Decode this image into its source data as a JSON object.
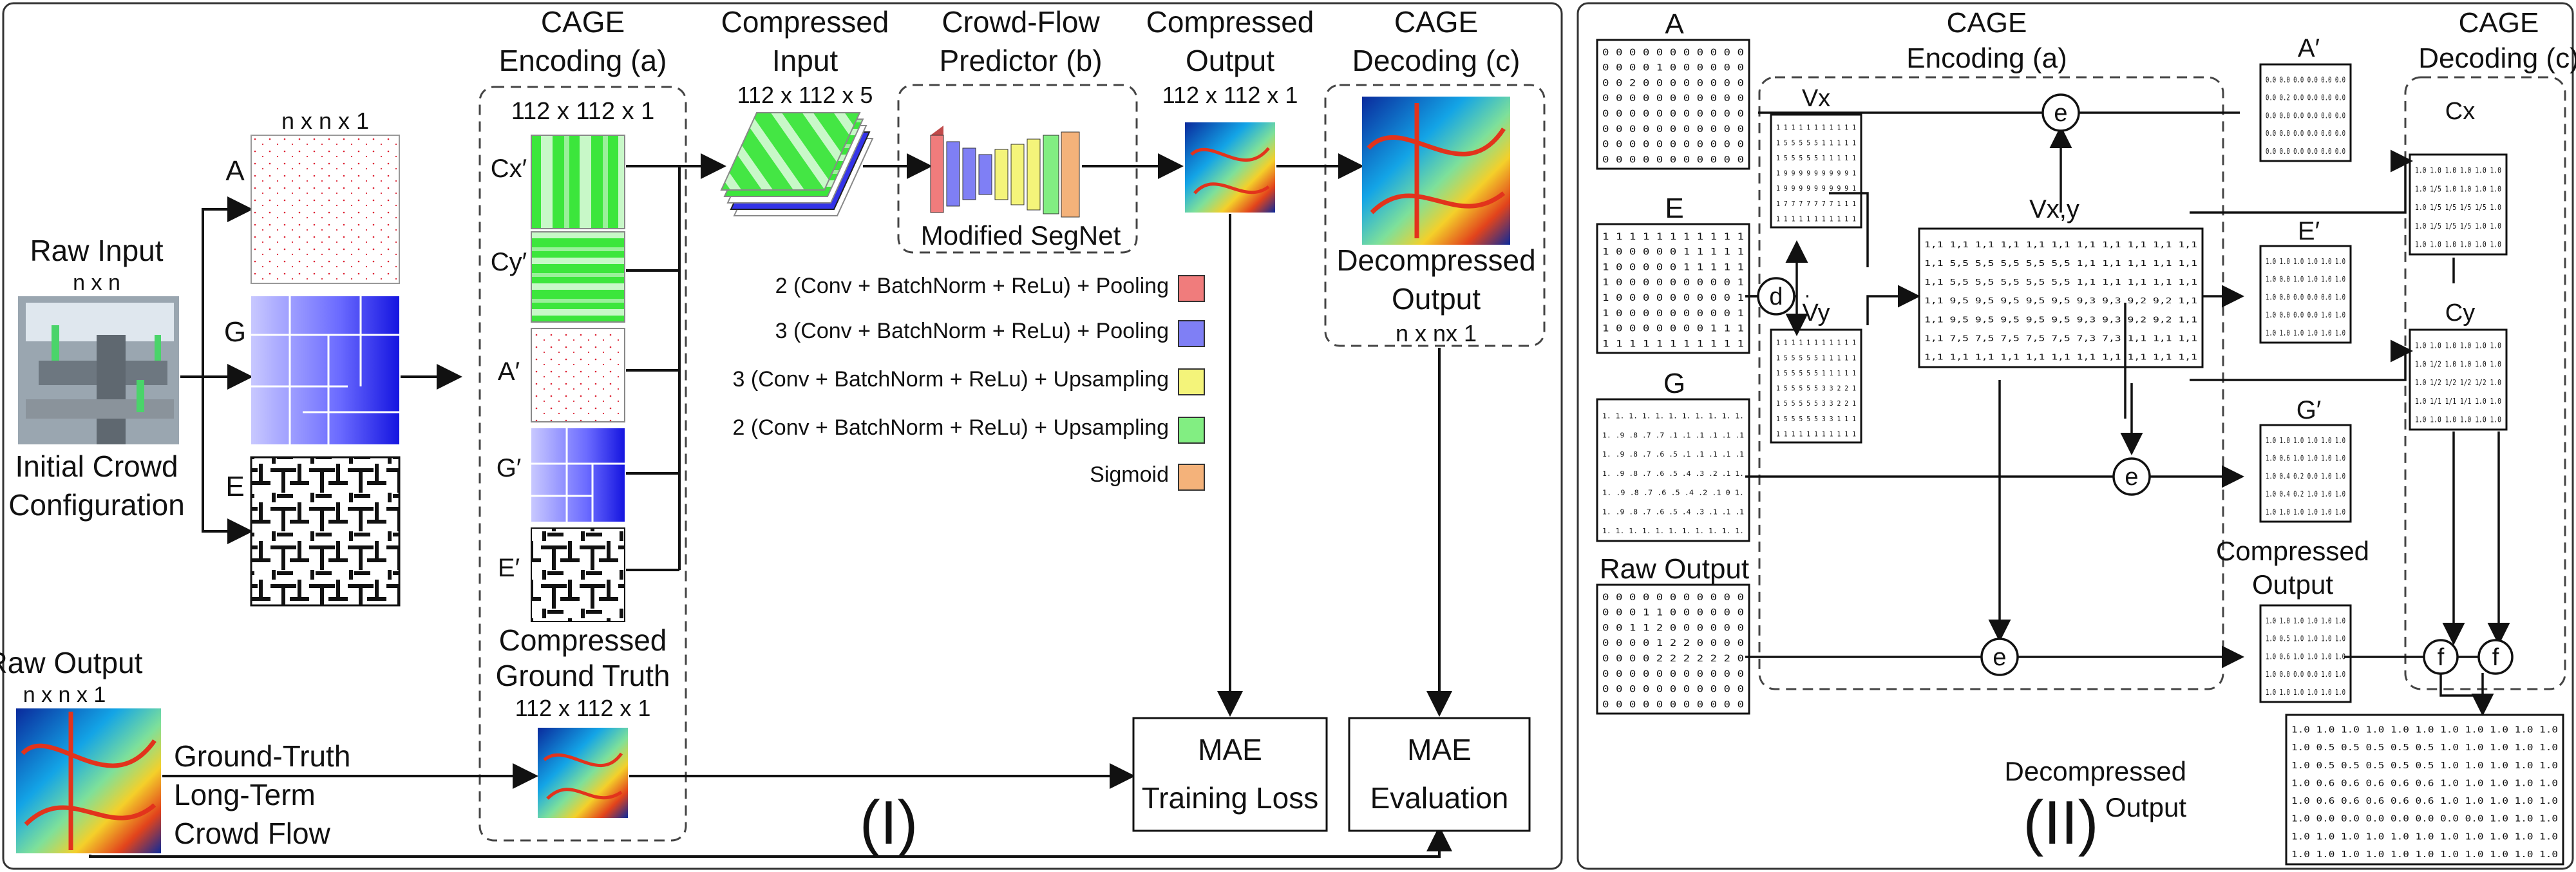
{
  "panel_left": {
    "label": "(I)",
    "raw_input": {
      "title": "Raw Input",
      "dims": "n x n"
    },
    "initial_config": {
      "line1": "Initial Crowd",
      "line2": "Configuration"
    },
    "grids_dims": "n x n x 1",
    "grid_labels": {
      "a": "A",
      "g": "G",
      "e": "E"
    },
    "cage_encoding": {
      "title_line1": "CAGE",
      "title_line2": "Encoding (a)",
      "dims": "112 x 112 x 1",
      "labels": [
        "Cx′",
        "Cy′",
        "A′",
        "G′",
        "E′"
      ]
    },
    "compressed_ground_truth": {
      "line1": "Compressed",
      "line2": "Ground Truth",
      "dims": "112 x 112 x 1"
    },
    "compressed_input": {
      "line1": "Compressed",
      "line2": "Input",
      "dims": "112 x 112 x 5"
    },
    "crowd_flow": {
      "line1": "Crowd-Flow",
      "line2": "Predictor (b)",
      "segnet": "Modified SegNet"
    },
    "compressed_output": {
      "line1": "Compressed",
      "line2": "Output",
      "dims": "112 x 112 x 1"
    },
    "cage_decoding": {
      "line1": "CAGE",
      "line2": "Decoding (c)"
    },
    "decompressed_output": {
      "line1": "Decompressed",
      "line2": "Output",
      "dims": "n x nx 1"
    },
    "legend": [
      {
        "label": "2 (Conv + BatchNorm + ReLu) + Pooling",
        "color": "#f07c7c"
      },
      {
        "label": "3 (Conv + BatchNorm + ReLu) + Pooling",
        "color": "#7f7ff5"
      },
      {
        "label": "3 (Conv + BatchNorm + ReLu) + Upsampling",
        "color": "#f4f47a"
      },
      {
        "label": "2 (Conv + BatchNorm + ReLu) + Upsampling",
        "color": "#82ee82"
      },
      {
        "label": "Sigmoid",
        "color": "#f4b27a"
      }
    ],
    "raw_output": {
      "title": "Raw Output",
      "dims": "n x n x 1"
    },
    "ground_truth_text": [
      "Ground-Truth",
      "Long-Term",
      "Crowd Flow"
    ],
    "mae_training": {
      "line1": "MAE",
      "line2": "Training Loss"
    },
    "mae_evaluation": {
      "line1": "MAE",
      "line2": "Evaluation"
    }
  },
  "panel_right": {
    "label": "(II)",
    "cage_encoding": {
      "line1": "CAGE",
      "line2": "Encoding (a)"
    },
    "cage_decoding": {
      "line1": "CAGE",
      "line2": "Decoding (c)"
    },
    "matrix_a": {
      "label": "A",
      "rows": [
        "0 0 0 0 0 0 0 0 0 0 0",
        "0 0 0 0 1 0 0 0 0 0 0",
        "0 0 2 0 0 0 0 0 0 0 0",
        "0 0 0 0 0 0 0 0 0 0 0",
        "0 0 0 0 0 0 0 0 0 0 0",
        "0 0 0 0 0 0 0 0 0 0 0",
        "0 0 0 0 0 0 0 0 0 0 0",
        "0 0 0 0 0 0 0 0 0 0 0"
      ]
    },
    "matrix_e": {
      "label": "E",
      "rows": [
        "1 1 1 1 1 1 1 1 1 1 1",
        "1 0 0 0 0 0 1 1 1 1 1",
        "1 0 0 0 0 0 1 1 1 1 1",
        "1 0 0 0 0 0 0 0 0 0 1",
        "1 0 0 0 0 0 0 0 0 0 1",
        "1 0 0 0 0 0 0 0 0 0 1",
        "1 0 0 0 0 0 0 0 1 1 1",
        "1 1 1 1 1 1 1 1 1 1 1"
      ]
    },
    "matrix_g": {
      "label": "G",
      "rows": [
        "1. 1. 1. 1. 1. 1. 1. 1. 1. 1. 1.",
        "1. .9 .8 .7 .7 .1 .1 .1 .1 .1 .1",
        "1. .9 .8 .7 .6 .5 .1 .1 .1 .1 .1",
        "1. .9 .8 .7 .6 .5 .4 .3 .2 .1 1.",
        "1. .9 .8 .7 .6 .5 .4 .2 .1 0 1.",
        "1. .9 .8 .7 .6 .5 .4 .3 .1 .1 .1",
        "1. 1. 1. 1. 1. 1. 1. 1. 1. 1. 1."
      ]
    },
    "raw_output": {
      "label": "Raw Output",
      "rows": [
        "0 0 0 0 0 0 0 0 0 0 0",
        "0 0 0 1 1 0 0 0 0 0 0",
        "0 0 1 1 2 0 0 0 0 0 0",
        "0 0 0 0 1 2 2 0 0 0 0",
        "0 0 0 0 2 2 2 2 2 2 0",
        "0 0 0 0 0 0 0 0 0 0 0",
        "0 0 0 0 0 0 0 0 0 0 0",
        "0 0 0 0 0 0 0 0 0 0 0"
      ]
    },
    "vx": {
      "label": "Vx",
      "rows": [
        "1 1 1 1 1 1 1 1 1 1 1",
        "1 5 5 5 5 5 1 1 1 1 1",
        "1 5 5 5 5 5 1 1 1 1 1",
        "1 9 9 9 9 9 9 9 9 9 1",
        "1 9 9 9 9 9 9 9 9 9 1",
        "1 7 7 7 7 7 7 7 1 1 1",
        "1 1 1 1 1 1 1 1 1 1 1"
      ]
    },
    "vy": {
      "label": "Vy",
      "rows": [
        "1 1 1 1 1 1 1 1 1 1 1",
        "1 5 5 5 5 5 1 1 1 1 1",
        "1 5 5 5 5 5 1 1 1 1 1",
        "1 5 5 5 5 5 3 3 2 2 1",
        "1 5 5 5 5 5 3 3 2 2 1",
        "1 5 5 5 5 5 3 3 1 1 1",
        "1 1 1 1 1 1 1 1 1 1 1"
      ]
    },
    "vxy": {
      "label": "Vx,y",
      "rows": [
        "1,1 1,1 1,1 1,1 1,1 1,1 1,1 1,1 1,1 1,1 1,1",
        "1,1 5,5 5,5 5,5 5,5 5,5 1,1 1,1 1,1 1,1 1,1",
        "1,1 5,5 5,5 5,5 5,5 5,5 1,1 1,1 1,1 1,1 1,1",
        "1,1 9,5 9,5 9,5 9,5 9,5 9,3 9,3 9,2 9,2 1,1",
        "1,1 9,5 9,5 9,5 9,5 9,5 9,3 9,3 9,2 9,2 1,1",
        "1,1 7,5 7,5 7,5 7,5 7,5 7,3 7,3 1,1 1,1 1,1",
        "1,1 1,1 1,1 1,1 1,1 1,1 1,1 1,1 1,1 1,1 1,1"
      ]
    },
    "a_prime": {
      "label": "A′",
      "rows": [
        "0.0 0.0 0.0 0.0 0.0 0.0",
        "0.0 0.2 0.0 0.0 0.0 0.0",
        "0.0 0.0 0.0 0.0 0.0 0.0",
        "0.0 0.0 0.0 0.0 0.0 0.0",
        "0.0 0.0 0.0 0.0 0.0 0.0"
      ]
    },
    "e_prime": {
      "label": "E′",
      "rows": [
        "1.0 1.0 1.0 1.0 1.0 1.0",
        "1.0 0.0 1.0 1.0 1.0 1.0",
        "1.0 0.0 0.0 0.0 0.0 1.0",
        "1.0 0.0 0.0 0.0 1.0 1.0",
        "1.0 1.0 1.0 1.0 1.0 1.0"
      ]
    },
    "g_prime": {
      "label": "G′",
      "rows": [
        "1.0 1.0 1.0 1.0 1.0 1.0",
        "1.0 0.6 1.0 1.0 1.0 1.0",
        "1.0 0.4 0.2 0.0 1.0 1.0",
        "1.0 0.4 0.2 1.0 1.0 1.0",
        "1.0 1.0 1.0 1.0 1.0 1.0"
      ]
    },
    "cx": {
      "label": "Cx",
      "rows": [
        "1.0 1.0 1.0 1.0 1.0 1.0",
        "1.0 1/5 1.0 1.0 1.0 1.0",
        "1.0 1/5 1/5 1/5 1/5 1.0",
        "1.0 1/5 1/5 1/5 1.0 1.0",
        "1.0 1.0 1.0 1.0 1.0 1.0"
      ]
    },
    "cy": {
      "label": "Cy",
      "rows": [
        "1.0 1.0 1.0 1.0 1.0 1.0",
        "1.0 1/2 1.0 1.0 1.0 1.0",
        "1.0 1/2 1/2 1/2 1/2 1.0",
        "1.0 1/1 1/1 1/1 1.0 1.0",
        "1.0 1.0 1.0 1.0 1.0 1.0"
      ]
    },
    "compressed_output": {
      "line1": "Compressed",
      "line2": "Output",
      "rows": [
        "1.0 1.0 1.0 1.0 1.0 1.0",
        "1.0 0.5 1.0 1.0 1.0 1.0",
        "1.0 0.6 1.0 1.0 1.0 1.0",
        "1.0 0.0 0.0 0.0 1.0 1.0",
        "1.0 1.0 1.0 1.0 1.0 1.0"
      ]
    },
    "decompressed_output": {
      "line1": "Decompressed",
      "line2": "Output",
      "rows": [
        "1.0 1.0 1.0 1.0 1.0 1.0 1.0 1.0 1.0 1.0 1.0",
        "1.0 0.5 0.5 0.5 0.5 0.5 1.0 1.0 1.0 1.0 1.0",
        "1.0 0.5 0.5 0.5 0.5 0.5 1.0 1.0 1.0 1.0 1.0",
        "1.0 0.6 0.6 0.6 0.6 0.6 1.0 1.0 1.0 1.0 1.0",
        "1.0 0.6 0.6 0.6 0.6 0.6 1.0 1.0 1.0 1.0 1.0",
        "1.0 0.0 0.0 0.0 0.0 0.0 0.0 0.0 1.0 1.0 1.0",
        "1.0 1.0 1.0 1.0 1.0 1.0 1.0 1.0 1.0 1.0 1.0",
        "1.0 1.0 1.0 1.0 1.0 1.0 1.0 1.0 1.0 1.0 1.0"
      ]
    },
    "ops": {
      "d": "d",
      "e": "e",
      "f": "f"
    }
  }
}
